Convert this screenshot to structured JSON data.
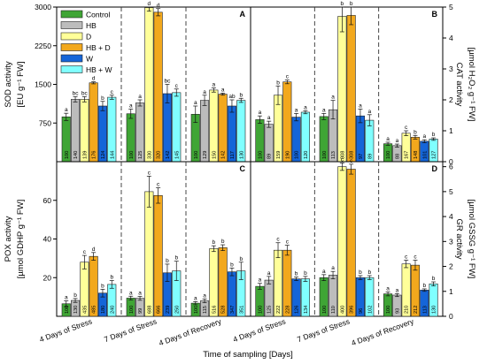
{
  "colors": {
    "Control": "#3fa535",
    "HB": "#bcbcbc",
    "D": "#ffff99",
    "HB + D": "#f2a81d",
    "W": "#1565d8",
    "HB + W": "#80ffff"
  },
  "legend": {
    "entries": [
      "Control",
      "HB",
      "D",
      "HB + D",
      "W",
      "HB + W"
    ],
    "placement": "top-left of panel A"
  },
  "xlabel": "Time of sampling [Days]",
  "groups": [
    "4 Days of Stress",
    "7 Days of Stress",
    "4 Days of Recovery"
  ],
  "chart_data": [
    {
      "panel": "A",
      "type": "bar",
      "ylabel_line1": "SOD activity",
      "ylabel_line2": "[EU g⁻¹ FW]",
      "yaxis_side": "left",
      "ylim": [
        0,
        3000
      ],
      "yticks": [
        750,
        1500,
        2250,
        3000
      ],
      "ytick_labels": [
        "750",
        "1500",
        "2250",
        "3000"
      ],
      "categories": [
        "4 Days of Stress",
        "7 Days of Stress",
        "4 Days of Recovery"
      ],
      "series": [
        {
          "name": "Control",
          "values": [
            870,
            930,
            920
          ],
          "errors": [
            70,
            90,
            160
          ],
          "letters": [
            "a",
            "a",
            "a"
          ],
          "pct": [
            "100",
            "100",
            "100"
          ]
        },
        {
          "name": "HB",
          "values": [
            1210,
            1140,
            1190
          ],
          "errors": [
            50,
            60,
            100
          ],
          "letters": [
            "bc",
            "a",
            "a"
          ],
          "pct": [
            "140",
            "125",
            "129"
          ]
        },
        {
          "name": "D",
          "values": [
            1210,
            2990,
            1390
          ],
          "errors": [
            50,
            70,
            40
          ],
          "letters": [
            "bc",
            "d",
            "a"
          ],
          "pct": [
            "139",
            "330",
            "150"
          ]
        },
        {
          "name": "HB + D",
          "values": [
            1530,
            2900,
            1310
          ],
          "errors": [
            20,
            70,
            20
          ],
          "letters": [
            "d",
            "d",
            "a"
          ],
          "pct": [
            "176",
            "320",
            "142"
          ]
        },
        {
          "name": "W",
          "values": [
            1080,
            1320,
            1080
          ],
          "errors": [
            90,
            180,
            120
          ],
          "letters": [
            "b",
            "bc",
            "ab"
          ],
          "pct": [
            "124",
            "142",
            "117"
          ]
        },
        {
          "name": "HB + W",
          "values": [
            1250,
            1340,
            1190
          ],
          "errors": [
            40,
            70,
            40
          ],
          "letters": [
            "c",
            "c",
            "b"
          ],
          "pct": [
            "144",
            "145",
            "130"
          ]
        }
      ]
    },
    {
      "panel": "B",
      "type": "bar",
      "ylabel_line1": "CAT activity",
      "ylabel_line2": "[µmol H₂O₂ g⁻¹ FW]",
      "yaxis_side": "right",
      "ylim": [
        0,
        5
      ],
      "yticks": [
        0,
        1,
        2,
        3,
        4,
        5
      ],
      "ytick_labels": [
        "0",
        "1",
        "2",
        "3",
        "4",
        "5"
      ],
      "categories": [
        "4 Days of Stress",
        "7 Days of Stress",
        "4 Days of Recovery"
      ],
      "series": [
        {
          "name": "Control",
          "values": [
            1.36,
            1.46,
            0.58
          ],
          "errors": [
            0.12,
            0.1,
            0.05
          ],
          "letters": [
            "a",
            "a",
            "a"
          ],
          "pct": [
            "100",
            "100",
            "100"
          ]
        },
        {
          "name": "HB",
          "values": [
            1.21,
            1.68,
            0.52
          ],
          "errors": [
            0.1,
            0.3,
            0.05
          ],
          "letters": [
            "a",
            "a",
            "a"
          ],
          "pct": [
            "89",
            "113",
            "88"
          ]
        },
        {
          "name": "D",
          "values": [
            2.15,
            4.7,
            0.92
          ],
          "errors": [
            0.3,
            0.5,
            0.08
          ],
          "letters": [
            "b",
            "b",
            "c"
          ],
          "pct": [
            "159",
            "308",
            "167"
          ]
        },
        {
          "name": "HB + D",
          "values": [
            2.58,
            4.73,
            0.79
          ],
          "errors": [
            0.06,
            0.3,
            0.06
          ],
          "letters": [
            "c",
            "b",
            "b"
          ],
          "pct": [
            "190",
            "308",
            "148"
          ]
        },
        {
          "name": "W",
          "values": [
            1.44,
            1.48,
            0.66
          ],
          "errors": [
            0.12,
            0.22,
            0.05
          ],
          "letters": [
            "a",
            "a",
            "a"
          ],
          "pct": [
            "100",
            "97",
            "101"
          ]
        },
        {
          "name": "HB + W",
          "values": [
            1.6,
            1.34,
            0.73
          ],
          "errors": [
            0.05,
            0.18,
            0.04
          ],
          "letters": [
            "a",
            "a",
            "b"
          ],
          "pct": [
            "120",
            "89",
            "127"
          ]
        }
      ]
    },
    {
      "panel": "C",
      "type": "bar",
      "ylabel_line1": "POX activity",
      "ylabel_line2": "[µmol GDHP g⁻¹ FW]",
      "yaxis_side": "left",
      "ylim": [
        0,
        80
      ],
      "yticks": [
        20,
        40,
        60
      ],
      "ytick_labels": [
        "20",
        "40",
        "60"
      ],
      "categories": [
        "4 Days of Stress",
        "7 Days of Stress",
        "4 Days of Recovery"
      ],
      "series": [
        {
          "name": "Control",
          "values": [
            6.5,
            9.4,
            6.8
          ],
          "errors": [
            1.5,
            1.0,
            0.8
          ],
          "letters": [
            "a",
            "a",
            "a"
          ],
          "pct": [
            "100",
            "100",
            "100"
          ]
        },
        {
          "name": "HB",
          "values": [
            8.2,
            9.3,
            8.0
          ],
          "errors": [
            1.0,
            1.0,
            1.0
          ],
          "letters": [
            "b",
            "a",
            "a"
          ],
          "pct": [
            "130",
            "99",
            "115"
          ]
        },
        {
          "name": "D",
          "values": [
            28.0,
            64.5,
            35.0
          ],
          "errors": [
            3.5,
            8.0,
            1.5
          ],
          "letters": [
            "c",
            "c",
            "b"
          ],
          "pct": [
            "435",
            "688",
            "516"
          ]
        },
        {
          "name": "HB + D",
          "values": [
            31.0,
            62.5,
            35.5
          ],
          "errors": [
            2.0,
            4.0,
            1.5
          ],
          "letters": [
            "d",
            "c",
            "b"
          ],
          "pct": [
            "485",
            "666",
            "528"
          ]
        },
        {
          "name": "W",
          "values": [
            12.0,
            22.5,
            23.0
          ],
          "errors": [
            2.0,
            4.5,
            2.0
          ],
          "letters": [
            "b",
            "b",
            "b"
          ],
          "pct": [
            "180",
            "239",
            "347"
          ]
        },
        {
          "name": "HB + W",
          "values": [
            16.5,
            23.5,
            23.5
          ],
          "errors": [
            2.0,
            5.0,
            4.5
          ],
          "letters": [
            "b",
            "b",
            "b"
          ],
          "pct": [
            "240",
            "250",
            "351"
          ]
        }
      ]
    },
    {
      "panel": "D",
      "type": "bar",
      "ylabel_line1": "GR activity",
      "ylabel_line2": "[µmol GSSG g⁻¹ FW]",
      "yaxis_side": "right",
      "ylim": [
        0,
        6.2
      ],
      "yticks": [
        0,
        1,
        2,
        3,
        4,
        5,
        6
      ],
      "ytick_labels": [
        "0",
        "1",
        "2",
        "3",
        "4",
        "5",
        "6"
      ],
      "categories": [
        "4 Days of Stress",
        "7 Days of Stress",
        "4 Days of Recovery"
      ],
      "series": [
        {
          "name": "Control",
          "values": [
            1.2,
            1.55,
            0.9
          ],
          "errors": [
            0.12,
            0.12,
            0.08
          ],
          "letters": [
            "a",
            "a",
            "a"
          ],
          "pct": [
            "100",
            "100",
            "100"
          ]
        },
        {
          "name": "HB",
          "values": [
            1.45,
            1.65,
            0.85
          ],
          "errors": [
            0.15,
            0.15,
            0.06
          ],
          "letters": [
            "a",
            "a",
            "a"
          ],
          "pct": [
            "125",
            "110",
            "93"
          ]
        },
        {
          "name": "D",
          "values": [
            2.65,
            6.0,
            2.1
          ],
          "errors": [
            0.3,
            0.15,
            0.15
          ],
          "letters": [
            "c",
            "c",
            "c"
          ],
          "pct": [
            "222",
            "400",
            "210"
          ]
        },
        {
          "name": "HB + D",
          "values": [
            2.65,
            5.9,
            2.05
          ],
          "errors": [
            0.2,
            0.2,
            0.2
          ],
          "letters": [
            "c",
            "c",
            "c"
          ],
          "pct": [
            "228",
            "396",
            "212"
          ]
        },
        {
          "name": "W",
          "values": [
            1.5,
            1.55,
            1.05
          ],
          "errors": [
            0.07,
            0.08,
            0.05
          ],
          "letters": [
            "b",
            "b",
            "b"
          ],
          "pct": [
            "126",
            "96",
            "113"
          ]
        },
        {
          "name": "HB + W",
          "values": [
            1.5,
            1.55,
            1.3
          ],
          "errors": [
            0.1,
            0.08,
            0.08
          ],
          "letters": [
            "b",
            "b",
            "b"
          ],
          "pct": [
            "134",
            "102",
            "130"
          ]
        }
      ]
    }
  ]
}
